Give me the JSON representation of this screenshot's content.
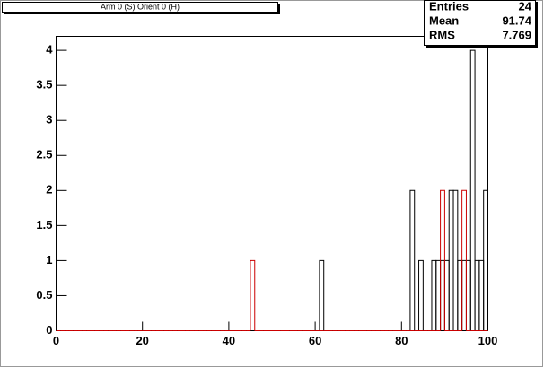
{
  "chart_data": {
    "type": "histogram",
    "title": "Arm 0 (S) Orient 0 (H)",
    "bins": [
      0,
      1,
      2,
      3,
      4,
      5,
      6,
      7,
      8,
      9,
      10,
      11,
      12,
      13,
      14,
      15,
      16,
      17,
      18,
      19,
      20,
      21,
      22,
      23,
      24,
      25,
      26,
      27,
      28,
      29,
      30,
      31,
      32,
      33,
      34,
      35,
      36,
      37,
      38,
      39,
      40,
      41,
      42,
      43,
      44,
      45,
      46,
      47,
      48,
      49,
      50,
      51,
      52,
      53,
      54,
      55,
      56,
      57,
      58,
      59,
      60,
      61,
      62,
      63,
      64,
      65,
      66,
      67,
      68,
      69,
      70,
      71,
      72,
      73,
      74,
      75,
      76,
      77,
      78,
      79,
      80,
      81,
      82,
      83,
      84,
      85,
      86,
      87,
      88,
      89,
      90,
      91,
      92,
      93,
      94,
      95,
      96,
      97,
      98,
      99,
      100
    ],
    "series": [
      {
        "color": "#000000",
        "values": [
          0,
          0,
          0,
          0,
          0,
          0,
          0,
          0,
          0,
          0,
          0,
          0,
          0,
          0,
          0,
          0,
          0,
          0,
          0,
          0,
          0,
          0,
          0,
          0,
          0,
          0,
          0,
          0,
          0,
          0,
          0,
          0,
          0,
          0,
          0,
          0,
          0,
          0,
          0,
          0,
          0,
          0,
          0,
          0,
          0,
          0,
          0,
          0,
          0,
          0,
          0,
          0,
          0,
          0,
          0,
          0,
          0,
          0,
          0,
          0,
          0,
          1,
          0,
          0,
          0,
          0,
          0,
          0,
          0,
          0,
          0,
          0,
          0,
          0,
          0,
          0,
          0,
          0,
          0,
          0,
          0,
          0,
          2,
          0,
          1,
          0,
          0,
          1,
          1,
          1,
          1,
          2,
          2,
          1,
          1,
          1,
          4,
          1,
          1,
          2
        ]
      },
      {
        "color": "#cc0000",
        "values": [
          0,
          0,
          0,
          0,
          0,
          0,
          0,
          0,
          0,
          0,
          0,
          0,
          0,
          0,
          0,
          0,
          0,
          0,
          0,
          0,
          0,
          0,
          0,
          0,
          0,
          0,
          0,
          0,
          0,
          0,
          0,
          0,
          0,
          0,
          0,
          0,
          0,
          0,
          0,
          0,
          0,
          0,
          0,
          0,
          0,
          1,
          0,
          0,
          0,
          0,
          0,
          0,
          0,
          0,
          0,
          0,
          0,
          0,
          0,
          0,
          0,
          0,
          0,
          0,
          0,
          0,
          0,
          0,
          0,
          0,
          0,
          0,
          0,
          0,
          0,
          0,
          0,
          0,
          0,
          0,
          0,
          0,
          0,
          0,
          0,
          0,
          0,
          0,
          0,
          2,
          0,
          0,
          0,
          0,
          2,
          0,
          0,
          0,
          0,
          0
        ]
      }
    ],
    "xlim": [
      0,
      100
    ],
    "xticks": [
      0,
      20,
      40,
      60,
      80,
      100
    ],
    "ylim": [
      0,
      4.2
    ],
    "yticks": [
      0,
      0.5,
      1,
      1.5,
      2,
      2.5,
      3,
      3.5,
      4
    ],
    "stats": [
      {
        "label": "Entries",
        "value": 24
      },
      {
        "label": "Mean",
        "value": 91.74
      },
      {
        "label": "RMS",
        "value": 7.769
      }
    ]
  }
}
